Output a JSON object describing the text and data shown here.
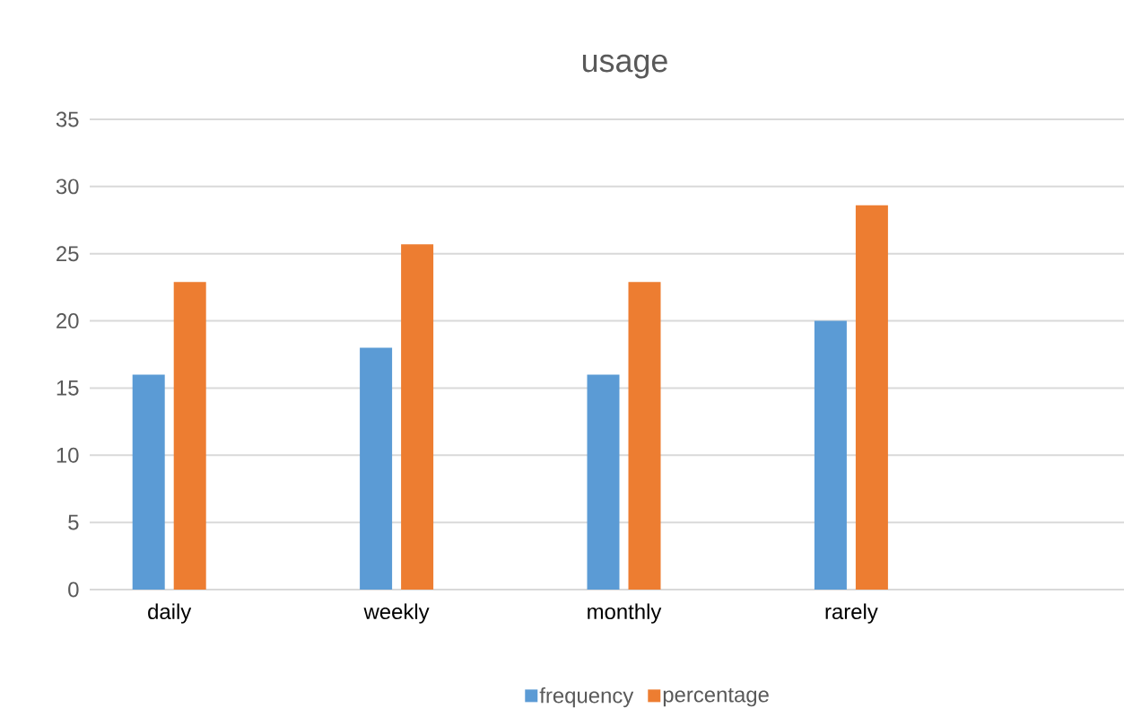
{
  "chart_data": {
    "type": "bar",
    "title": "usage",
    "categories": [
      "daily",
      "weekly",
      "monthly",
      "rarely"
    ],
    "series": [
      {
        "name": "frequency",
        "color": "#5b9bd5",
        "values": [
          16,
          18,
          16,
          20
        ]
      },
      {
        "name": "percentage",
        "color": "#ed7d31",
        "values": [
          22.9,
          25.7,
          22.9,
          28.6
        ]
      }
    ],
    "ylim": [
      0,
      35
    ],
    "yticks": [
      0,
      5,
      10,
      15,
      20,
      25,
      30,
      35
    ],
    "grid": "y",
    "legend": "bottom"
  }
}
